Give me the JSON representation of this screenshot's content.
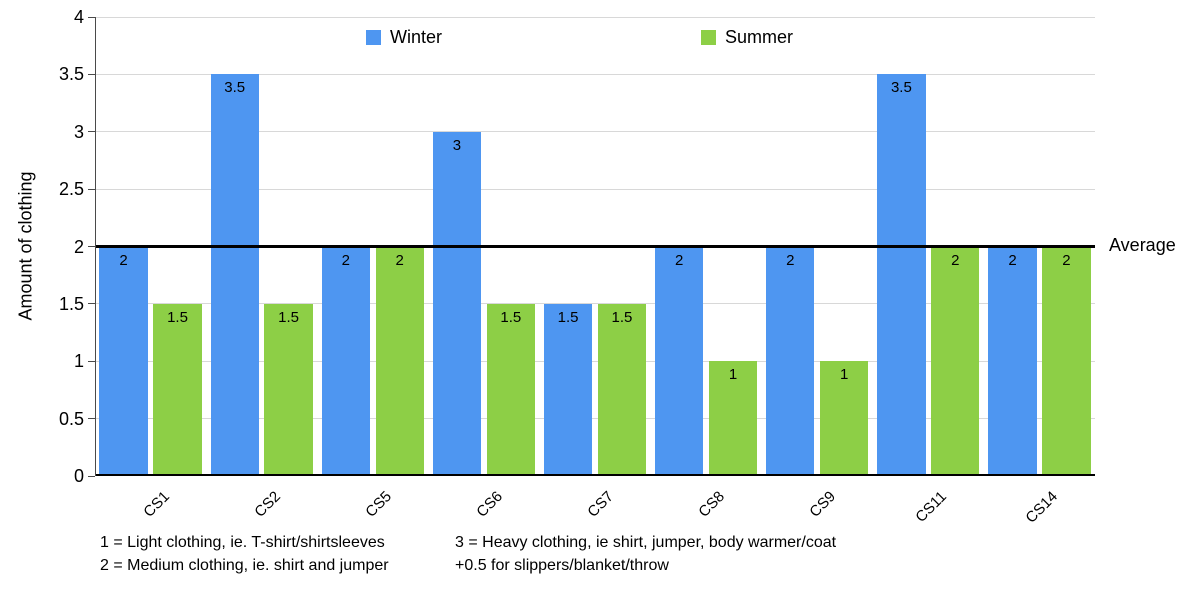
{
  "chart_data": {
    "type": "bar",
    "categories": [
      "CS1",
      "CS2",
      "CS5",
      "CS6",
      "CS7",
      "CS8",
      "CS9",
      "CS11",
      "CS14"
    ],
    "series": [
      {
        "name": "Winter",
        "color": "#4E96F1",
        "values": [
          2,
          3.5,
          2,
          3,
          1.5,
          2,
          2,
          3.5,
          2
        ]
      },
      {
        "name": "Summer",
        "color": "#8DCF46",
        "values": [
          1.5,
          1.5,
          2,
          1.5,
          1.5,
          1,
          1,
          2,
          2
        ]
      }
    ],
    "title": "",
    "xlabel": "",
    "ylabel": "Amount of clothing",
    "ylim": [
      0,
      4
    ],
    "ytick_step": 0.5,
    "grid": true,
    "legend_position": "top",
    "gridline_color": "#d8d8d8",
    "average_line": {
      "value": 2,
      "label": "Average",
      "color": "#000000"
    }
  },
  "footnotes": {
    "columns": [
      {
        "lines": [
          "1 = Light clothing, ie. T-shirt/shirtsleeves",
          "2 = Medium clothing, ie. shirt and jumper"
        ]
      },
      {
        "lines": [
          "3 = Heavy clothing, ie shirt, jumper, body warmer/coat",
          "+0.5 for slippers/blanket/throw"
        ]
      }
    ]
  }
}
